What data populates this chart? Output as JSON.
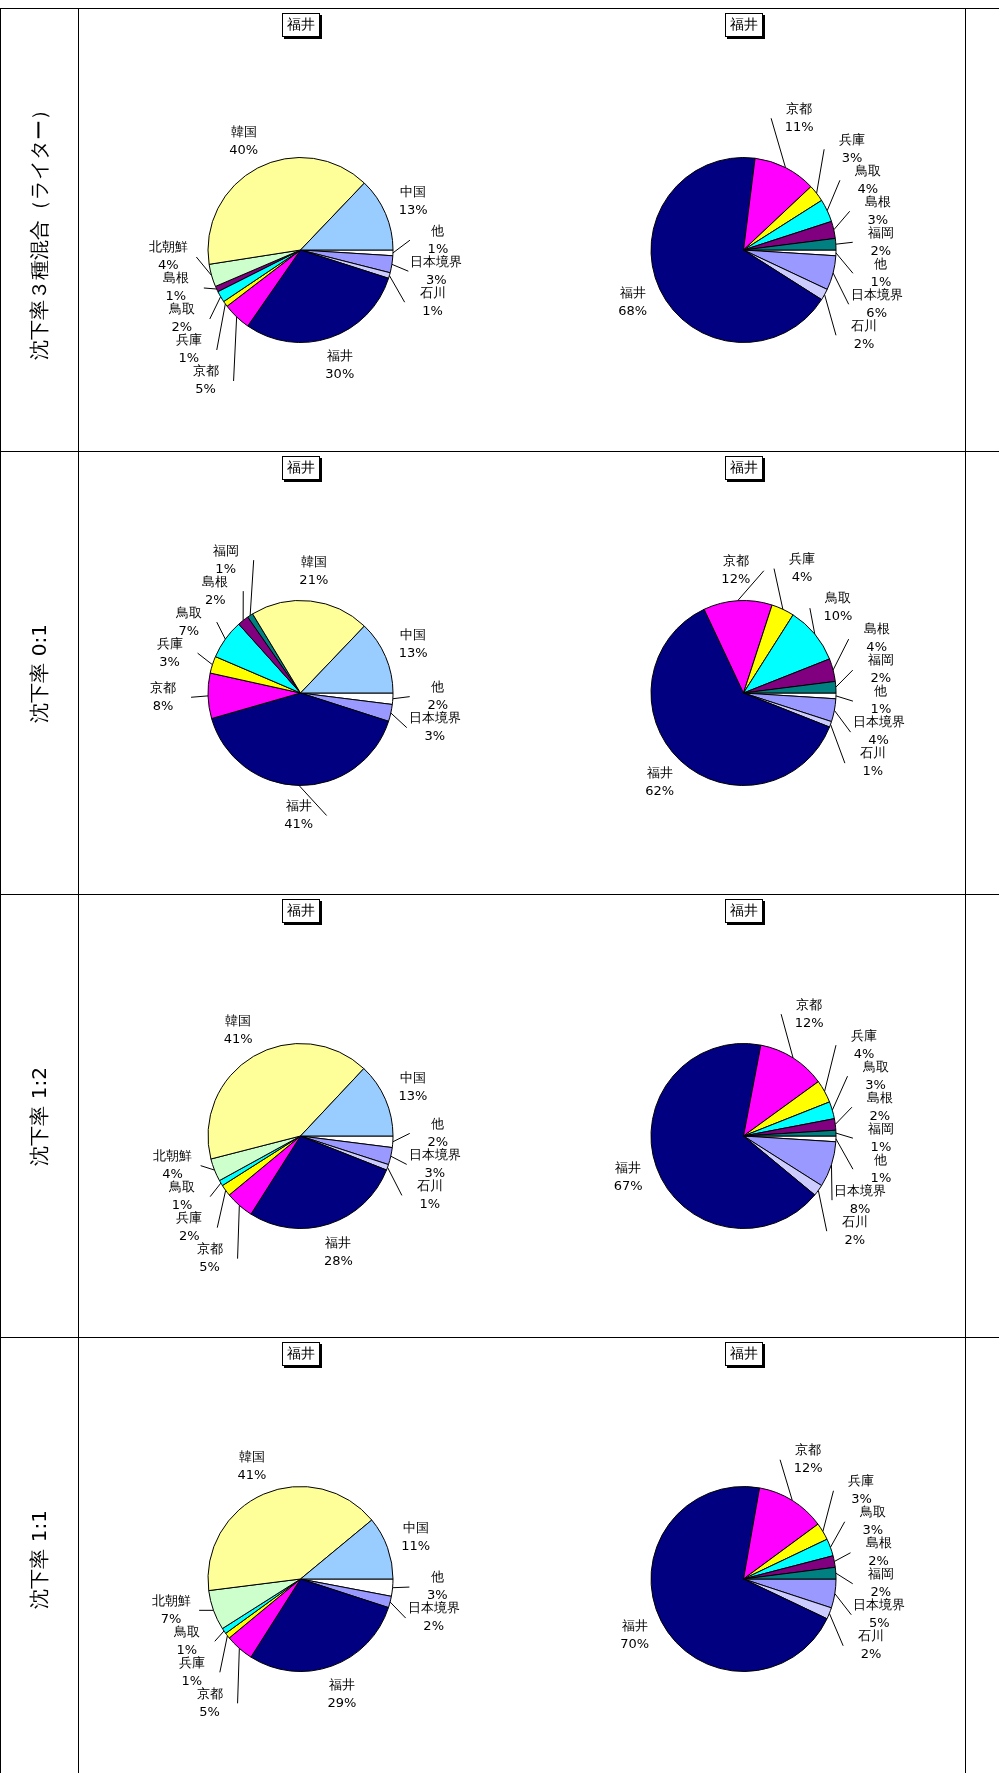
{
  "chart_data": [
    {
      "type": "pie",
      "title": "福井",
      "ylabel": "沈下率３種混合（ライター）",
      "categories": [
        "他",
        "日本境界",
        "石川",
        "福井",
        "京都",
        "兵庫",
        "鳥取",
        "島根",
        "北朝鮮",
        "韓国",
        "中国"
      ],
      "values": [
        1,
        3,
        1,
        30,
        5,
        1,
        2,
        1,
        4,
        40,
        13
      ],
      "value_labels": [
        "1%",
        "3%",
        "1%",
        "30%",
        "5%",
        "1%",
        "2%",
        "1%",
        "4%",
        "40%",
        "13%"
      ],
      "colors": [
        "#ffffff",
        "#9999ff",
        "#ccccff",
        "#000080",
        "#ff00ff",
        "#ffff00",
        "#00ffff",
        "#800080",
        "#ccffcc",
        "#ffff99",
        "#99ccff"
      ]
    },
    {
      "type": "pie",
      "title": "福井",
      "categories": [
        "他",
        "日本境界",
        "石川",
        "福井",
        "京都",
        "兵庫",
        "鳥取",
        "島根",
        "福岡"
      ],
      "values": [
        1,
        6,
        2,
        68,
        11,
        3,
        4,
        3,
        2
      ],
      "value_labels": [
        "1%",
        "6%",
        "2%",
        "68%",
        "11%",
        "3%",
        "4%",
        "3%",
        "2%"
      ],
      "colors": [
        "#ffffff",
        "#9999ff",
        "#ccccff",
        "#000080",
        "#ff00ff",
        "#ffff00",
        "#00ffff",
        "#800080",
        "#008080"
      ]
    },
    {
      "type": "pie",
      "title": "福井",
      "ylabel": "沈下率 0:1",
      "categories": [
        "他",
        "日本境界",
        "福井",
        "京都",
        "兵庫",
        "鳥取",
        "島根",
        "福岡",
        "韓国",
        "中国"
      ],
      "values": [
        2,
        3,
        41,
        8,
        3,
        7,
        2,
        1,
        21,
        13
      ],
      "value_labels": [
        "2%",
        "3%",
        "41%",
        "8%",
        "3%",
        "7%",
        "2%",
        "1%",
        "21%",
        "13%"
      ],
      "colors": [
        "#ffffff",
        "#9999ff",
        "#000080",
        "#ff00ff",
        "#ffff00",
        "#00ffff",
        "#800080",
        "#008080",
        "#ffff99",
        "#99ccff"
      ]
    },
    {
      "type": "pie",
      "title": "福井",
      "categories": [
        "他",
        "日本境界",
        "石川",
        "福井",
        "京都",
        "兵庫",
        "鳥取",
        "島根",
        "福岡"
      ],
      "values": [
        1,
        4,
        1,
        62,
        12,
        4,
        10,
        4,
        2
      ],
      "value_labels": [
        "1%",
        "4%",
        "1%",
        "62%",
        "12%",
        "4%",
        "10%",
        "4%",
        "2%"
      ],
      "colors": [
        "#ffffff",
        "#9999ff",
        "#ccccff",
        "#000080",
        "#ff00ff",
        "#ffff00",
        "#00ffff",
        "#800080",
        "#008080"
      ]
    },
    {
      "type": "pie",
      "title": "福井",
      "ylabel": "沈下率 1:2",
      "categories": [
        "他",
        "日本境界",
        "石川",
        "福井",
        "京都",
        "兵庫",
        "鳥取",
        "北朝鮮",
        "韓国",
        "中国"
      ],
      "values": [
        2,
        3,
        1,
        28,
        5,
        2,
        1,
        4,
        41,
        13
      ],
      "value_labels": [
        "2%",
        "3%",
        "1%",
        "28%",
        "5%",
        "2%",
        "1%",
        "4%",
        "41%",
        "13%"
      ],
      "colors": [
        "#ffffff",
        "#9999ff",
        "#ccccff",
        "#000080",
        "#ff00ff",
        "#ffff00",
        "#00ffff",
        "#ccffcc",
        "#ffff99",
        "#99ccff"
      ]
    },
    {
      "type": "pie",
      "title": "福井",
      "categories": [
        "他",
        "日本境界",
        "石川",
        "福井",
        "京都",
        "兵庫",
        "鳥取",
        "島根",
        "福岡"
      ],
      "values": [
        1,
        8,
        2,
        67,
        12,
        4,
        3,
        2,
        1
      ],
      "value_labels": [
        "1%",
        "8%",
        "2%",
        "67%",
        "12%",
        "4%",
        "3%",
        "2%",
        "1%"
      ],
      "colors": [
        "#ffffff",
        "#9999ff",
        "#ccccff",
        "#000080",
        "#ff00ff",
        "#ffff00",
        "#00ffff",
        "#800080",
        "#008080"
      ]
    },
    {
      "type": "pie",
      "title": "福井",
      "ylabel": "沈下率 1:1",
      "categories": [
        "他",
        "日本境界",
        "福井",
        "京都",
        "兵庫",
        "鳥取",
        "北朝鮮",
        "韓国",
        "中国"
      ],
      "values": [
        3,
        2,
        29,
        5,
        1,
        1,
        7,
        41,
        11
      ],
      "value_labels": [
        "3%",
        "2%",
        "29%",
        "5%",
        "1%",
        "1%",
        "7%",
        "41%",
        "11%"
      ],
      "colors": [
        "#ffffff",
        "#9999ff",
        "#000080",
        "#ff00ff",
        "#ffff00",
        "#00ffff",
        "#ccffcc",
        "#ffff99",
        "#99ccff"
      ]
    },
    {
      "type": "pie",
      "title": "福井",
      "categories": [
        "日本境界",
        "石川",
        "福井",
        "京都",
        "兵庫",
        "鳥取",
        "島根",
        "福岡"
      ],
      "values": [
        5,
        2,
        70,
        12,
        3,
        3,
        2,
        2
      ],
      "value_labels": [
        "5%",
        "2%",
        "70%",
        "12%",
        "3%",
        "3%",
        "2%",
        "2%"
      ],
      "colors": [
        "#9999ff",
        "#ccccff",
        "#000080",
        "#ff00ff",
        "#ffff00",
        "#00ffff",
        "#800080",
        "#008080"
      ]
    }
  ]
}
